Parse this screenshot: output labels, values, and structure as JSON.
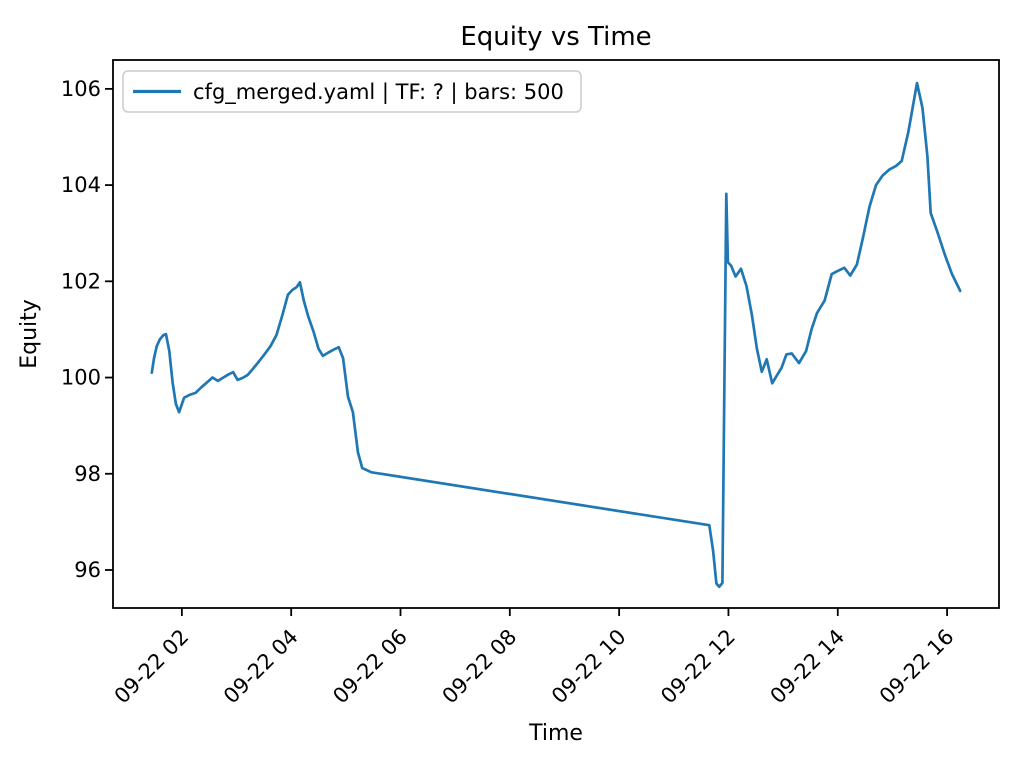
{
  "chart_data": {
    "type": "line",
    "title": "Equity vs Time",
    "xlabel": "Time",
    "ylabel": "Equity",
    "grid": false,
    "legend_position": "upper left",
    "xlim": [
      0.74,
      16.95
    ],
    "ylim": [
      95.21,
      106.6
    ],
    "x_ticks": {
      "values": [
        2,
        4,
        6,
        8,
        10,
        12,
        14,
        16
      ],
      "labels": [
        "09-22 02",
        "09-22 04",
        "09-22 06",
        "09-22 08",
        "09-22 10",
        "09-22 12",
        "09-22 14",
        "09-22 16"
      ]
    },
    "y_ticks": {
      "values": [
        96,
        98,
        100,
        102,
        104,
        106
      ],
      "labels": [
        "96",
        "98",
        "100",
        "102",
        "104",
        "106"
      ]
    },
    "series": [
      {
        "name": "cfg_merged.yaml | TF: ? | bars: 500",
        "color": "#1f77b4",
        "points_format": "[hour_of_day_on_09-22, equity]",
        "points": [
          [
            1.45,
            100.1
          ],
          [
            1.49,
            100.4
          ],
          [
            1.54,
            100.65
          ],
          [
            1.6,
            100.8
          ],
          [
            1.66,
            100.88
          ],
          [
            1.71,
            100.9
          ],
          [
            1.77,
            100.55
          ],
          [
            1.83,
            99.9
          ],
          [
            1.89,
            99.45
          ],
          [
            1.95,
            99.28
          ],
          [
            2.04,
            99.58
          ],
          [
            2.14,
            99.64
          ],
          [
            2.25,
            99.68
          ],
          [
            2.36,
            99.8
          ],
          [
            2.46,
            99.9
          ],
          [
            2.56,
            100.0
          ],
          [
            2.66,
            99.93
          ],
          [
            2.76,
            100.0
          ],
          [
            2.86,
            100.07
          ],
          [
            2.94,
            100.11
          ],
          [
            3.02,
            99.95
          ],
          [
            3.11,
            99.99
          ],
          [
            3.2,
            100.05
          ],
          [
            3.3,
            100.18
          ],
          [
            3.4,
            100.32
          ],
          [
            3.51,
            100.48
          ],
          [
            3.62,
            100.65
          ],
          [
            3.73,
            100.88
          ],
          [
            3.84,
            101.3
          ],
          [
            3.94,
            101.72
          ],
          [
            4.02,
            101.82
          ],
          [
            4.1,
            101.88
          ],
          [
            4.16,
            101.98
          ],
          [
            4.23,
            101.6
          ],
          [
            4.31,
            101.28
          ],
          [
            4.41,
            100.95
          ],
          [
            4.5,
            100.6
          ],
          [
            4.58,
            100.45
          ],
          [
            4.68,
            100.52
          ],
          [
            4.78,
            100.58
          ],
          [
            4.87,
            100.63
          ],
          [
            4.95,
            100.4
          ],
          [
            5.04,
            99.6
          ],
          [
            5.13,
            99.28
          ],
          [
            5.22,
            98.45
          ],
          [
            5.3,
            98.12
          ],
          [
            5.47,
            98.03
          ],
          [
            11.65,
            96.93
          ],
          [
            11.72,
            96.4
          ],
          [
            11.78,
            95.72
          ],
          [
            11.83,
            95.65
          ],
          [
            11.89,
            95.73
          ],
          [
            11.96,
            103.82
          ],
          [
            11.99,
            102.4
          ],
          [
            12.05,
            102.32
          ],
          [
            12.13,
            102.1
          ],
          [
            12.23,
            102.26
          ],
          [
            12.33,
            101.9
          ],
          [
            12.43,
            101.3
          ],
          [
            12.52,
            100.6
          ],
          [
            12.61,
            100.12
          ],
          [
            12.7,
            100.38
          ],
          [
            12.8,
            99.88
          ],
          [
            12.89,
            100.05
          ],
          [
            12.97,
            100.2
          ],
          [
            13.06,
            100.48
          ],
          [
            13.16,
            100.5
          ],
          [
            13.29,
            100.3
          ],
          [
            13.42,
            100.55
          ],
          [
            13.52,
            101.0
          ],
          [
            13.62,
            101.34
          ],
          [
            13.76,
            101.6
          ],
          [
            13.89,
            102.15
          ],
          [
            14.01,
            102.22
          ],
          [
            14.12,
            102.28
          ],
          [
            14.23,
            102.12
          ],
          [
            14.35,
            102.35
          ],
          [
            14.46,
            102.9
          ],
          [
            14.58,
            103.55
          ],
          [
            14.7,
            104.0
          ],
          [
            14.82,
            104.2
          ],
          [
            14.94,
            104.32
          ],
          [
            15.07,
            104.4
          ],
          [
            15.17,
            104.5
          ],
          [
            15.29,
            105.1
          ],
          [
            15.45,
            106.12
          ],
          [
            15.55,
            105.6
          ],
          [
            15.64,
            104.6
          ],
          [
            15.7,
            103.42
          ],
          [
            15.83,
            103.0
          ],
          [
            15.96,
            102.55
          ],
          [
            16.09,
            102.15
          ],
          [
            16.24,
            101.8
          ]
        ]
      }
    ],
    "colors": {
      "line": "#1f77b4",
      "axes": "#000000",
      "legend_border": "#cccccc",
      "background": "#ffffff"
    }
  }
}
